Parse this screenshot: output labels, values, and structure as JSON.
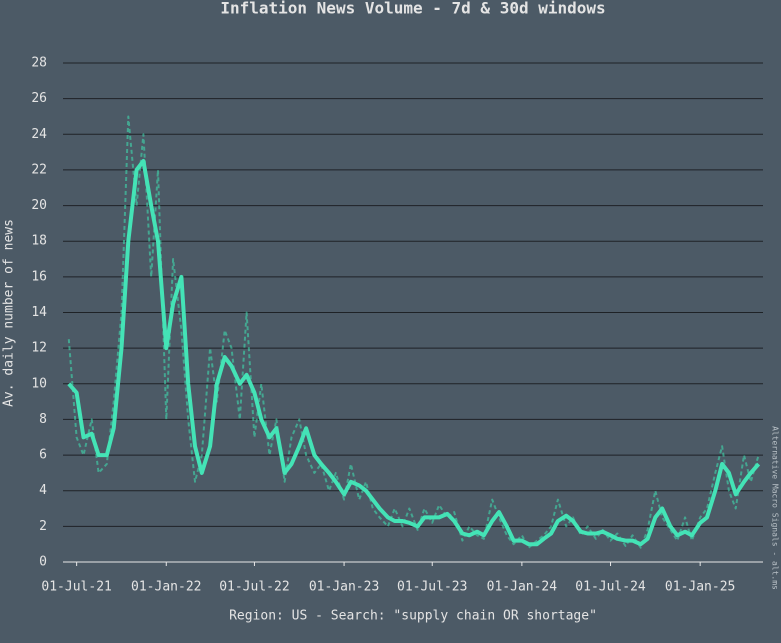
{
  "chart_data": {
    "type": "line",
    "title": "Inflation News Volume - 7d & 30d windows",
    "ylabel": "Av. daily number of news",
    "xlabel": "Region: US - Search: \"supply chain OR shortage\"",
    "watermark": "Alternative Macro Signals - alt.ms",
    "x": [
      "2021-06-15",
      "2021-07-01",
      "2021-07-15",
      "2021-08-01",
      "2021-08-15",
      "2021-09-01",
      "2021-09-15",
      "2021-10-01",
      "2021-10-15",
      "2021-11-01",
      "2021-11-15",
      "2021-12-01",
      "2021-12-15",
      "2022-01-01",
      "2022-01-15",
      "2022-02-01",
      "2022-02-15",
      "2022-03-01",
      "2022-03-15",
      "2022-04-01",
      "2022-04-15",
      "2022-05-01",
      "2022-05-15",
      "2022-06-01",
      "2022-06-15",
      "2022-07-01",
      "2022-07-15",
      "2022-08-01",
      "2022-08-15",
      "2022-09-01",
      "2022-09-15",
      "2022-10-01",
      "2022-10-15",
      "2022-11-01",
      "2022-11-15",
      "2022-12-01",
      "2022-12-15",
      "2023-01-01",
      "2023-01-15",
      "2023-02-01",
      "2023-02-15",
      "2023-03-01",
      "2023-03-15",
      "2023-04-01",
      "2023-04-15",
      "2023-05-01",
      "2023-05-15",
      "2023-06-01",
      "2023-06-15",
      "2023-07-01",
      "2023-07-15",
      "2023-08-01",
      "2023-08-15",
      "2023-09-01",
      "2023-09-15",
      "2023-10-01",
      "2023-10-15",
      "2023-11-01",
      "2023-11-15",
      "2023-12-01",
      "2023-12-15",
      "2024-01-01",
      "2024-01-15",
      "2024-02-01",
      "2024-02-15",
      "2024-03-01",
      "2024-03-15",
      "2024-04-01",
      "2024-04-15",
      "2024-05-01",
      "2024-05-15",
      "2024-06-01",
      "2024-06-15",
      "2024-07-01",
      "2024-07-15",
      "2024-08-01",
      "2024-08-15",
      "2024-09-01",
      "2024-09-15",
      "2024-10-01",
      "2024-10-15",
      "2024-11-01",
      "2024-11-15",
      "2024-12-01",
      "2024-12-15",
      "2025-01-01",
      "2025-01-15",
      "2025-02-01",
      "2025-02-15",
      "2025-03-01",
      "2025-03-15",
      "2025-04-01",
      "2025-04-15",
      "2025-05-01"
    ],
    "series": [
      {
        "color": "#3fd9ad",
        "style": "dashed",
        "values": [
          12.5,
          7,
          6,
          8,
          5,
          5.5,
          9,
          14,
          25,
          20,
          24,
          16,
          22,
          8,
          17,
          13,
          8,
          4.5,
          6,
          12,
          9,
          13,
          12,
          8,
          14,
          7,
          10,
          6,
          8,
          4.5,
          7,
          8,
          6,
          5,
          5.5,
          4,
          5,
          3.5,
          5.5,
          3.5,
          4.5,
          3,
          2.5,
          2,
          3,
          2,
          3,
          1.8,
          3,
          2.2,
          3.2,
          2.5,
          2.8,
          1.2,
          2,
          1.5,
          1.3,
          3.5,
          2.5,
          1.5,
          1,
          1.5,
          0.8,
          1.2,
          1.5,
          2,
          3.5,
          2,
          2.5,
          1.5,
          2,
          1.3,
          1.8,
          1.2,
          1.6,
          0.9,
          1.5,
          0.8,
          1.8,
          4,
          2.5,
          1.8,
          1.2,
          2.5,
          1.2,
          2.5,
          3,
          5,
          6.5,
          4,
          3,
          6,
          4.5,
          6
        ]
      },
      {
        "color": "#44e3b6",
        "style": "solid",
        "values": [
          10,
          9.5,
          7,
          7.2,
          6,
          6,
          7.5,
          12,
          18,
          22,
          22.5,
          20,
          18,
          12,
          14.5,
          16,
          10,
          6.5,
          5,
          6.5,
          10,
          11.5,
          11,
          10,
          10.5,
          9.5,
          8,
          7,
          7.5,
          5,
          5.5,
          6.5,
          7.5,
          6,
          5.5,
          5,
          4.5,
          3.8,
          4.5,
          4.3,
          4,
          3.5,
          3,
          2.5,
          2.3,
          2.3,
          2.2,
          2,
          2.5,
          2.5,
          2.5,
          2.7,
          2.3,
          1.6,
          1.5,
          1.7,
          1.5,
          2.3,
          2.8,
          2,
          1.2,
          1.2,
          1,
          1,
          1.3,
          1.6,
          2.3,
          2.6,
          2.3,
          1.7,
          1.6,
          1.6,
          1.7,
          1.5,
          1.3,
          1.2,
          1.2,
          1,
          1.3,
          2.5,
          3,
          2,
          1.5,
          1.7,
          1.5,
          2.2,
          2.5,
          4,
          5.5,
          5,
          3.8,
          4.5,
          5,
          5.5
        ]
      }
    ],
    "xlim": [
      "2021-06-03",
      "2025-05-10"
    ],
    "xticks": [
      {
        "value": "2021-07-01",
        "label": "01-Jul-21"
      },
      {
        "value": "2022-01-01",
        "label": "01-Jan-22"
      },
      {
        "value": "2022-07-01",
        "label": "01-Jul-22"
      },
      {
        "value": "2023-01-01",
        "label": "01-Jan-23"
      },
      {
        "value": "2023-07-01",
        "label": "01-Jul-23"
      },
      {
        "value": "2024-01-01",
        "label": "01-Jan-24"
      },
      {
        "value": "2024-07-01",
        "label": "01-Jul-24"
      },
      {
        "value": "2025-01-01",
        "label": "01-Jan-25"
      }
    ],
    "ylim": [
      0,
      28
    ],
    "yticks": [
      0,
      2,
      4,
      6,
      8,
      10,
      12,
      14,
      16,
      18,
      20,
      22,
      24,
      26,
      28
    ],
    "grid": true
  }
}
